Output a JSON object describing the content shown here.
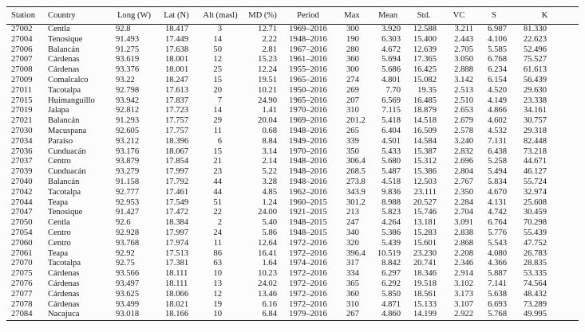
{
  "table": {
    "columns": [
      {
        "key": "station",
        "label": "Station"
      },
      {
        "key": "country",
        "label": "Country"
      },
      {
        "key": "long",
        "label": "Long (W)"
      },
      {
        "key": "lat",
        "label": "Lat (N)"
      },
      {
        "key": "alt",
        "label": "Alt (masl)"
      },
      {
        "key": "md",
        "label": "MD (%)"
      },
      {
        "key": "period",
        "label": "Period"
      },
      {
        "key": "max",
        "label": "Max"
      },
      {
        "key": "mean",
        "label": "Mean"
      },
      {
        "key": "std",
        "label": "Std."
      },
      {
        "key": "vc",
        "label": "VC"
      },
      {
        "key": "s",
        "label": "S"
      },
      {
        "key": "k",
        "label": "K"
      }
    ],
    "rows": [
      [
        "27002",
        "Centla",
        "92.8",
        "18.417",
        "3",
        "12.71",
        "1969–2016",
        "300",
        "3.920",
        "12.588",
        "3.211",
        "6.987",
        "81.330"
      ],
      [
        "27004",
        "Tenosique",
        "91.493",
        "17.449",
        "14",
        "2.22",
        "1948–2016",
        "190",
        "6.303",
        "15.400",
        "2.443",
        "4.106",
        "22.623"
      ],
      [
        "27006",
        "Balancán",
        "91.275",
        "17.638",
        "50",
        "2.81",
        "1967–2016",
        "280",
        "4.672",
        "12.639",
        "2.705",
        "5.585",
        "52.496"
      ],
      [
        "27007",
        "Cárdenas",
        "93.619",
        "18.001",
        "12",
        "15.23",
        "1961–2016",
        "360",
        "5.694",
        "17.365",
        "3.050",
        "6.768",
        "75.527"
      ],
      [
        "27008",
        "Cárdenas",
        "93.376",
        "18.001",
        "25",
        "12.24",
        "1955–2016",
        "300",
        "5.686",
        "16.425",
        "2.888",
        "6.234",
        "61.613"
      ],
      [
        "27009",
        "Comalcalco",
        "93.22",
        "18.247",
        "15",
        "19.51",
        "1965–2016",
        "274",
        "4.801",
        "15.082",
        "3.142",
        "6.154",
        "56.439"
      ],
      [
        "27011",
        "Tacotalpa",
        "92.798",
        "17.613",
        "20",
        "10.21",
        "1950–2016",
        "269",
        "7.70",
        "19.35",
        "2.513",
        "4.520",
        "29.630"
      ],
      [
        "27015",
        "Huimanguillo",
        "93.942",
        "17.837",
        "7",
        "24.90",
        "1965–2016",
        "207",
        "6.569",
        "16.485",
        "2.510",
        "4.149",
        "23.338"
      ],
      [
        "27019",
        "Jalapa",
        "92.812",
        "17.723",
        "14",
        "1.41",
        "1970–2016",
        "310",
        "7.115",
        "18.879",
        "2.653",
        "4.866",
        "34.161"
      ],
      [
        "27021",
        "Balancán",
        "91.293",
        "17.757",
        "29",
        "20.04",
        "1969–2016",
        "201.2",
        "5.418",
        "14.518",
        "2.679",
        "4.602",
        "30.757"
      ],
      [
        "27030",
        "Macuspana",
        "92.605",
        "17.757",
        "11",
        "0.68",
        "1948–2016",
        "265",
        "6.404",
        "16.509",
        "2.578",
        "4.532",
        "29.318"
      ],
      [
        "27034",
        "Paraíso",
        "93.212",
        "18.396",
        "6",
        "8.84",
        "1949–2016",
        "339",
        "4.501",
        "14.584",
        "3.240",
        "7.131",
        "82.448"
      ],
      [
        "27036",
        "Cunduacán",
        "93.176",
        "18.067",
        "15",
        "3.14",
        "1970–2016",
        "350",
        "5.433",
        "15.387",
        "2.832",
        "6.438",
        "73.218"
      ],
      [
        "27037",
        "Centro",
        "93.879",
        "17.854",
        "21",
        "2.14",
        "1948–2016",
        "306.4",
        "5.680",
        "15.312",
        "2.696",
        "5.258",
        "44.671"
      ],
      [
        "27039",
        "Cunduacán",
        "93.279",
        "17.997",
        "23",
        "5.22",
        "1948–2016",
        "268.5",
        "5.487",
        "15.386",
        "2.804",
        "5.494",
        "46.127"
      ],
      [
        "27040",
        "Balancán",
        "91.158",
        "17.792",
        "44",
        "3.28",
        "1948–2016",
        "273.8",
        "4.518",
        "12.503",
        "2.767",
        "5.834",
        "55.724"
      ],
      [
        "27042",
        "Tacotalpa",
        "92.777",
        "17.461",
        "44",
        "4.85",
        "1962–2016",
        "343.9",
        "9.836",
        "23.111",
        "2.350",
        "4.670",
        "32.974"
      ],
      [
        "27044",
        "Teapa",
        "92.953",
        "17.549",
        "51",
        "1.24",
        "1960–2015",
        "301.2",
        "8.988",
        "20.527",
        "2.284",
        "4.131",
        "25.608"
      ],
      [
        "27047",
        "Tenosique",
        "91.427",
        "17.472",
        "22",
        "24.00",
        "1921–2015",
        "213",
        "5.823",
        "15.746",
        "2.704",
        "4.742",
        "30.459"
      ],
      [
        "27050",
        "Centla",
        "92.6",
        "18.384",
        "2",
        "5.40",
        "1948–2015",
        "247",
        "4.264",
        "13.181",
        "3.091",
        "6.764",
        "70.298"
      ],
      [
        "27054",
        "Centro",
        "92.928",
        "17.997",
        "24",
        "5.86",
        "1948–2015",
        "340",
        "5.386",
        "15.283",
        "2.838",
        "5.776",
        "55.439"
      ],
      [
        "27060",
        "Centro",
        "93.768",
        "17.974",
        "11",
        "12.64",
        "1972–2016",
        "320",
        "5.439",
        "15.601",
        "2.868",
        "5.543",
        "47.752"
      ],
      [
        "27061",
        "Teapa",
        "92.92",
        "17.513",
        "86",
        "16.41",
        "1972–2016",
        "396.4",
        "10.519",
        "23.230",
        "2.208",
        "4.080",
        "26.783"
      ],
      [
        "27070",
        "Tacotalpa",
        "92.75",
        "17.381",
        "63",
        "1.64",
        "1974–2016",
        "317",
        "8.842",
        "20.741",
        "2.346",
        "4.366",
        "28.835"
      ],
      [
        "27075",
        "Cárdenas",
        "93.566",
        "18.111",
        "10",
        "10.23",
        "1972–2016",
        "334",
        "6.297",
        "18.346",
        "2.914",
        "5.887",
        "53.335"
      ],
      [
        "27076",
        "Cárdenas",
        "93.497",
        "18.111",
        "13",
        "24.02",
        "1972–2016",
        "365",
        "6.292",
        "19.518",
        "3.102",
        "7.141",
        "74.564"
      ],
      [
        "27077",
        "Cárdenas",
        "93.625",
        "18.066",
        "12",
        "13.46",
        "1972–2016",
        "360",
        "5.850",
        "18.561",
        "3.173",
        "5.638",
        "48.432"
      ],
      [
        "27078",
        "Cárdenas",
        "93.499",
        "18.021",
        "19",
        "6.16",
        "1972–2016",
        "310",
        "4.871",
        "15.133",
        "3.107",
        "6.693",
        "73.289"
      ],
      [
        "27084",
        "Nacajuca",
        "93.018",
        "18.166",
        "10",
        "6.84",
        "1979–2016",
        "267",
        "4.860",
        "14.199",
        "2.922",
        "5.768",
        "49.995"
      ]
    ]
  }
}
